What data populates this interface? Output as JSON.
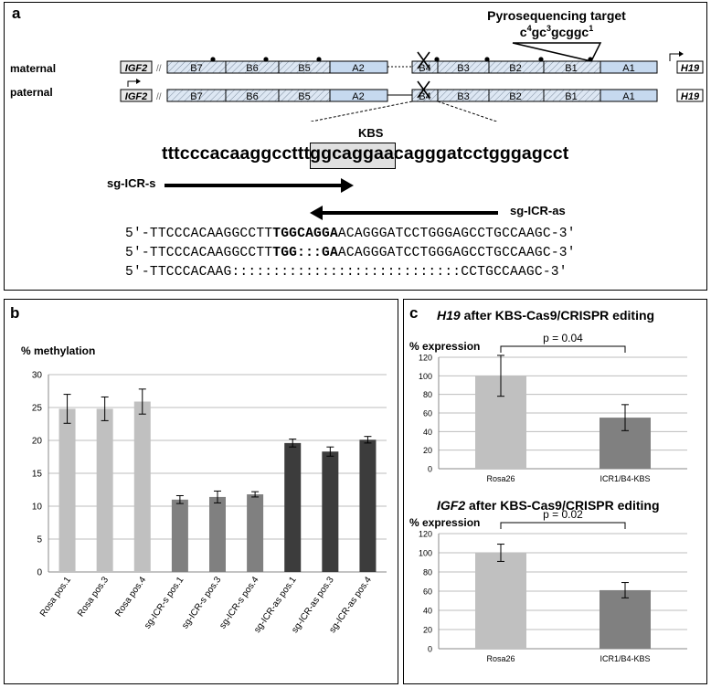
{
  "panel_a": {
    "label": "a",
    "pyro_title": "Pyrosequencing target",
    "pyro_seq_parts": [
      "c",
      "4",
      "gc",
      "3",
      "gcggc",
      "1"
    ],
    "rows": [
      {
        "name": "maternal",
        "left_gene": "IGF2",
        "right_gene": "H19",
        "blocks": [
          "B7",
          "B6",
          "B5",
          "A2",
          "B4",
          "B3",
          "B2",
          "B1",
          "A1"
        ]
      },
      {
        "name": "paternal",
        "left_gene": "IGF2",
        "right_gene": "H19",
        "blocks": [
          "B7",
          "B6",
          "B5",
          "A2",
          "B4",
          "B3",
          "B2",
          "B1",
          "A1"
        ]
      }
    ],
    "kbs_label": "KBS",
    "kbs_seq_pre": "tttcccacaaggccttt",
    "kbs_seq_box": "ggcagga",
    "kbs_seq_post": "acagggatcctgggagcct",
    "sg_s": "sg-ICR-s",
    "sg_as": "sg-ICR-as",
    "seqs": [
      {
        "pre": "5'-TTCCCACAAGGCCTT",
        "bold": "TGGCAGGA",
        "post": "ACAGGGATCCTGGGAGCCTGCCAAGC-3'"
      },
      {
        "pre": "5'-TTCCCACAAGGCCTT",
        "bold": "TGG:::GA",
        "post": "ACAGGGATCCTGGGAGCCTGCCAAGC-3'"
      },
      {
        "pre": "5'-TTCCCACAAG::::::::::::::::::::::::::::CCTGCCAAGC-3'",
        "bold": "",
        "post": ""
      }
    ]
  },
  "panel_b": {
    "label": "b",
    "chart_data": {
      "type": "bar",
      "ylabel": "% methylation",
      "ylim": [
        0,
        30
      ],
      "yticks": [
        0,
        5,
        10,
        15,
        20,
        25,
        30
      ],
      "categories": [
        "Rosa pos.1",
        "Rosa pos.3",
        "Rosa pos.4",
        "sg-ICR-s pos.1",
        "sg-ICR-s pos.3",
        "sg-ICR-s pos.4",
        "sg-ICR-as pos.1",
        "sg-ICR-as pos.3",
        "sg-ICR-as pos.4"
      ],
      "values": [
        24.8,
        24.8,
        25.9,
        11.0,
        11.4,
        11.8,
        19.6,
        18.3,
        20.1
      ],
      "errors": [
        2.2,
        1.8,
        1.9,
        0.6,
        0.9,
        0.4,
        0.6,
        0.7,
        0.5
      ],
      "colors": [
        "#c0c0c0",
        "#c0c0c0",
        "#c0c0c0",
        "#808080",
        "#808080",
        "#808080",
        "#3c3c3c",
        "#3c3c3c",
        "#3c3c3c"
      ],
      "grid": true
    }
  },
  "panel_c": {
    "label": "c",
    "chart_data": [
      {
        "type": "bar",
        "title_gene": "H19",
        "title_rest": " after KBS-Cas9/CRISPR editing",
        "ylabel": "% expression",
        "ylim": [
          0,
          120
        ],
        "yticks": [
          0,
          20,
          40,
          60,
          80,
          100,
          120
        ],
        "categories": [
          "Rosa26",
          "ICR1/B4-KBS"
        ],
        "values": [
          100,
          55
        ],
        "errors": [
          22,
          14
        ],
        "colors": [
          "#c0c0c0",
          "#808080"
        ],
        "pvalue": "p = 0.04",
        "grid": true
      },
      {
        "type": "bar",
        "title_gene": "IGF2",
        "title_rest": " after KBS-Cas9/CRISPR editing",
        "ylabel": "% expression",
        "ylim": [
          0,
          120
        ],
        "yticks": [
          0,
          20,
          40,
          60,
          80,
          100,
          120
        ],
        "categories": [
          "Rosa26",
          "ICR1/B4-KBS"
        ],
        "values": [
          100,
          61
        ],
        "errors": [
          9,
          8
        ],
        "colors": [
          "#c0c0c0",
          "#808080"
        ],
        "pvalue": "p = 0.02",
        "grid": true
      }
    ]
  }
}
